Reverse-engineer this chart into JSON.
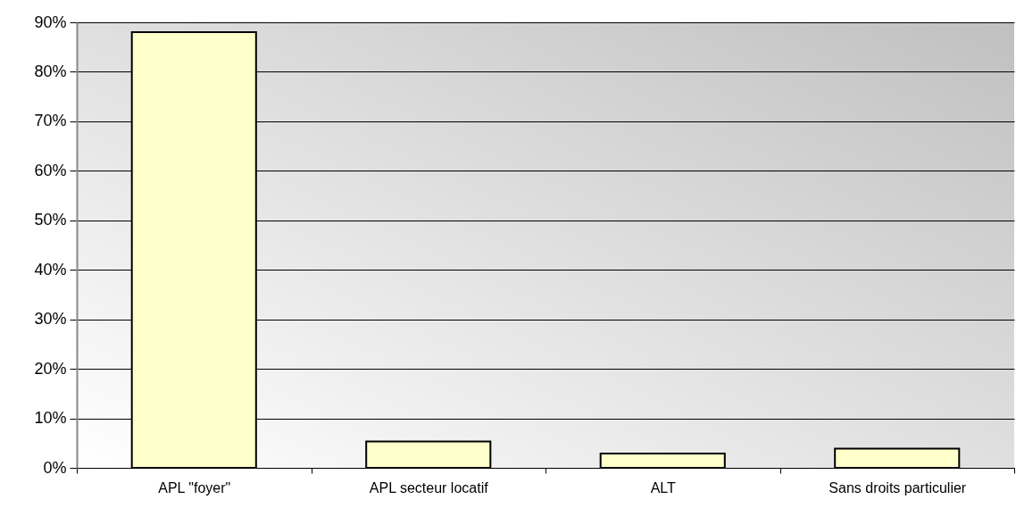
{
  "chart_data": {
    "type": "bar",
    "categories": [
      "APL \"foyer\"",
      "APL secteur locatif",
      "ALT",
      "Sans droits particulier"
    ],
    "values": [
      88,
      5.3,
      2.9,
      3.9
    ],
    "color": "#ffffcc",
    "ylim": [
      0,
      90
    ],
    "yticks": [
      {
        "value": 0,
        "label": "0%"
      },
      {
        "value": 10,
        "label": "10%"
      },
      {
        "value": 20,
        "label": "20%"
      },
      {
        "value": 30,
        "label": "30%"
      },
      {
        "value": 40,
        "label": "40%"
      },
      {
        "value": 50,
        "label": "50%"
      },
      {
        "value": 60,
        "label": "60%"
      },
      {
        "value": 70,
        "label": "70%"
      },
      {
        "value": 80,
        "label": "80%"
      },
      {
        "value": 90,
        "label": "90%"
      }
    ],
    "grid": "y"
  }
}
